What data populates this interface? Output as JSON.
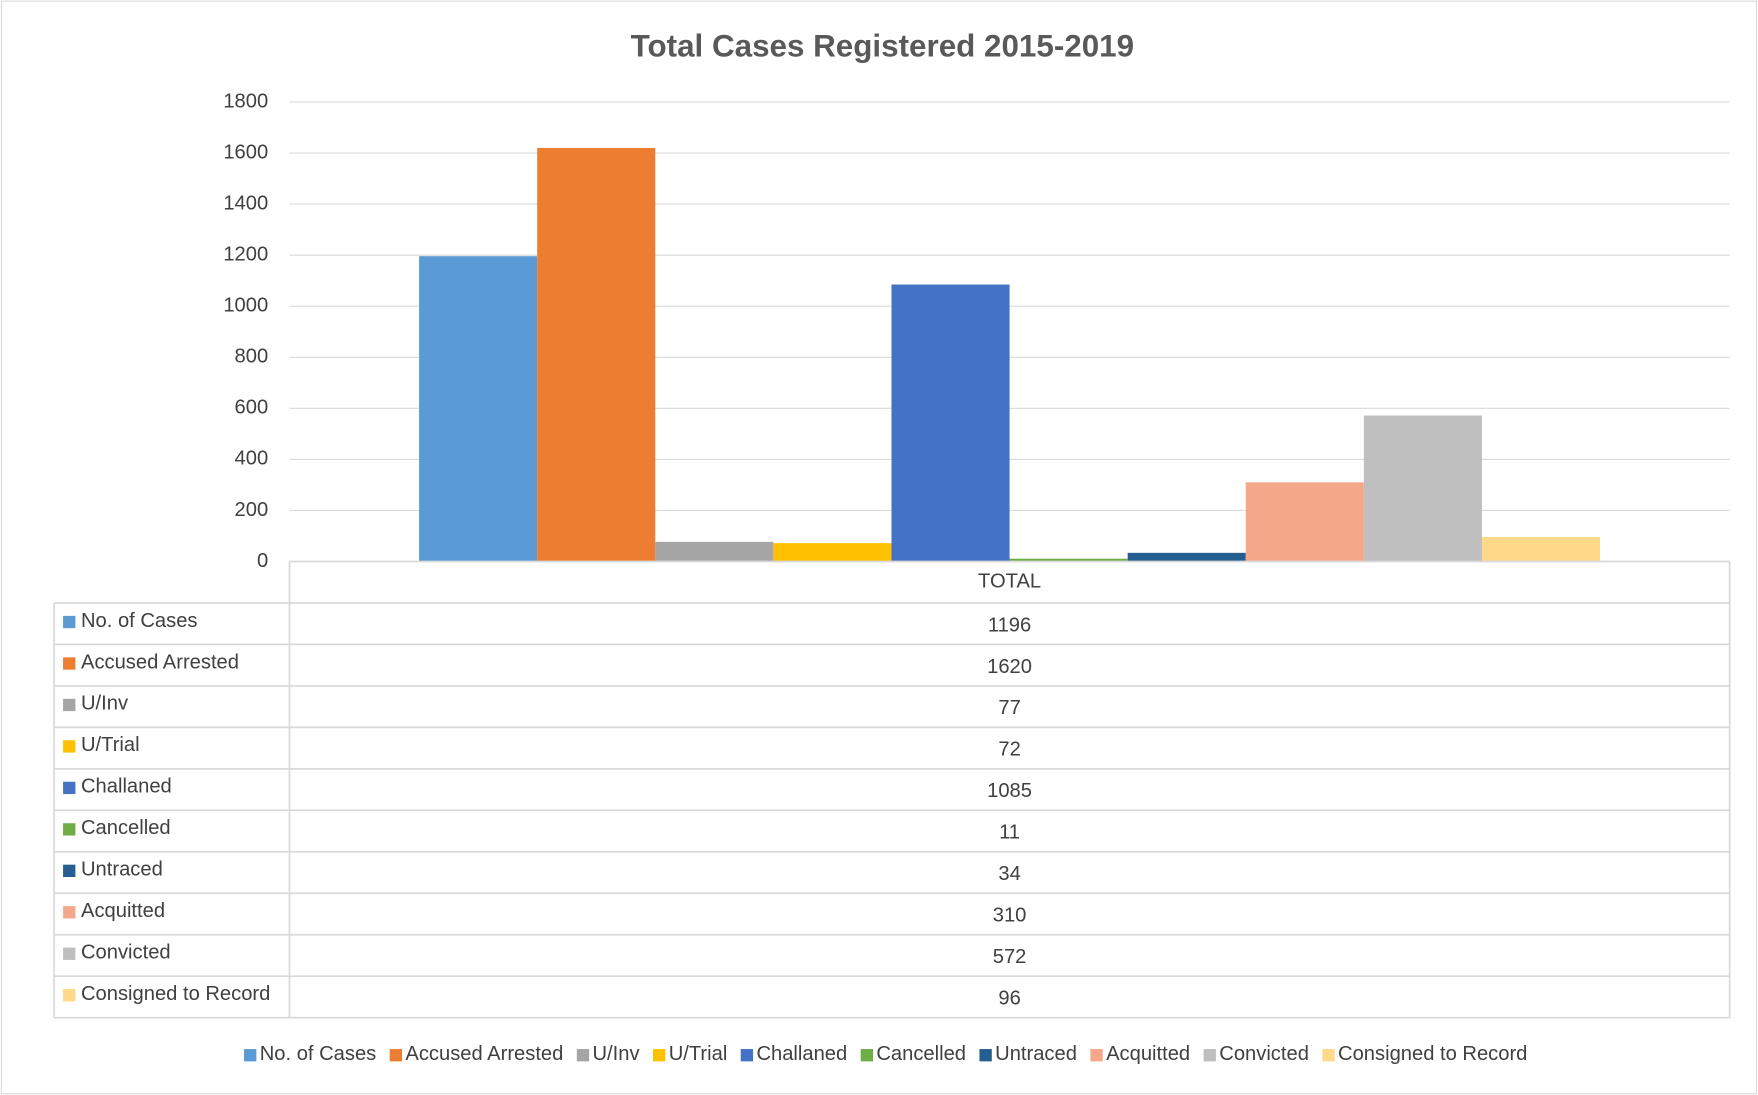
{
  "chart_data": {
    "type": "bar",
    "title": "Total Cases Registered 2015-2019",
    "categories": [
      "TOTAL"
    ],
    "series": [
      {
        "name": "No. of Cases",
        "color": "#5B9BD5",
        "values": [
          1196
        ]
      },
      {
        "name": "Accused Arrested",
        "color": "#ED7D31",
        "values": [
          1620
        ]
      },
      {
        "name": "U/Inv",
        "color": "#A5A5A5",
        "values": [
          77
        ]
      },
      {
        "name": "U/Trial",
        "color": "#FFC000",
        "values": [
          72
        ]
      },
      {
        "name": "Challaned",
        "color": "#4472C4",
        "values": [
          1085
        ]
      },
      {
        "name": "Cancelled",
        "color": "#70AD47",
        "values": [
          11
        ]
      },
      {
        "name": "Untraced",
        "color": "#255E91",
        "values": [
          34
        ]
      },
      {
        "name": "Acquitted",
        "color": "#F4A889",
        "values": [
          310
        ]
      },
      {
        "name": "Convicted",
        "color": "#BFBFBF",
        "values": [
          572
        ]
      },
      {
        "name": "Consigned to Record",
        "color": "#FFD98A",
        "values": [
          96
        ]
      }
    ],
    "ylim": [
      0,
      1800
    ],
    "yticks": [
      0,
      200,
      400,
      600,
      800,
      1000,
      1200,
      1400,
      1600,
      1800
    ],
    "grid": true,
    "legend": "bottom",
    "data_table": true
  }
}
